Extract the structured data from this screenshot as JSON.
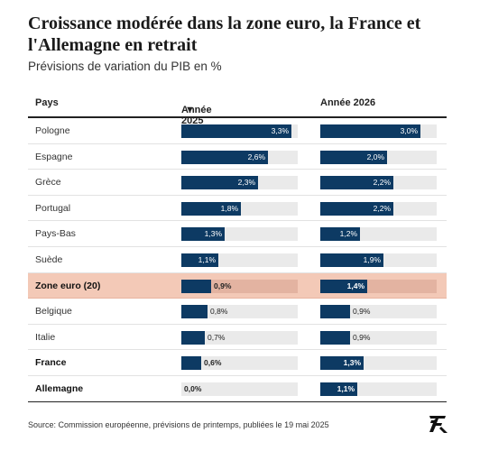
{
  "title": "Croissance modérée dans la zone euro, la France et l'Allemagne en retrait",
  "subtitle": "Prévisions de variation du PIB en %",
  "source": "Source: Commission européenne, prévisions de printemps, publiées le 19 mai 2025",
  "colors": {
    "bar": "#0d3a63",
    "track": "#eaeaea",
    "highlight": "#f3c9b7"
  },
  "chart_data": {
    "type": "table",
    "columns": [
      "Pays",
      "Année 2025",
      "Année 2026"
    ],
    "sorted_by": "Année 2025",
    "scale_max": 3.5,
    "rows": [
      {
        "pays": "Pologne",
        "y2025": 3.3,
        "y2026": 3.0,
        "l2025": "3,3%",
        "l2026": "3,0%",
        "style": "normal"
      },
      {
        "pays": "Espagne",
        "y2025": 2.6,
        "y2026": 2.0,
        "l2025": "2,6%",
        "l2026": "2,0%",
        "style": "normal"
      },
      {
        "pays": "Grèce",
        "y2025": 2.3,
        "y2026": 2.2,
        "l2025": "2,3%",
        "l2026": "2,2%",
        "style": "normal"
      },
      {
        "pays": "Portugal",
        "y2025": 1.8,
        "y2026": 2.2,
        "l2025": "1,8%",
        "l2026": "2,2%",
        "style": "normal"
      },
      {
        "pays": "Pays-Bas",
        "y2025": 1.3,
        "y2026": 1.2,
        "l2025": "1,3%",
        "l2026": "1,2%",
        "style": "normal"
      },
      {
        "pays": "Suède",
        "y2025": 1.1,
        "y2026": 1.9,
        "l2025": "1,1%",
        "l2026": "1,9%",
        "style": "normal"
      },
      {
        "pays": "Zone euro (20)",
        "y2025": 0.9,
        "y2026": 1.4,
        "l2025": "0,9%",
        "l2026": "1,4%",
        "style": "highlight"
      },
      {
        "pays": "Belgique",
        "y2025": 0.8,
        "y2026": 0.9,
        "l2025": "0,8%",
        "l2026": "0,9%",
        "style": "normal"
      },
      {
        "pays": "Italie",
        "y2025": 0.7,
        "y2026": 0.9,
        "l2025": "0,7%",
        "l2026": "0,9%",
        "style": "normal"
      },
      {
        "pays": "France",
        "y2025": 0.6,
        "y2026": 1.3,
        "l2025": "0,6%",
        "l2026": "1,3%",
        "style": "bold"
      },
      {
        "pays": "Allemagne",
        "y2025": 0.0,
        "y2026": 1.1,
        "l2025": "0,0%",
        "l2026": "1,1%",
        "style": "bold"
      }
    ]
  }
}
